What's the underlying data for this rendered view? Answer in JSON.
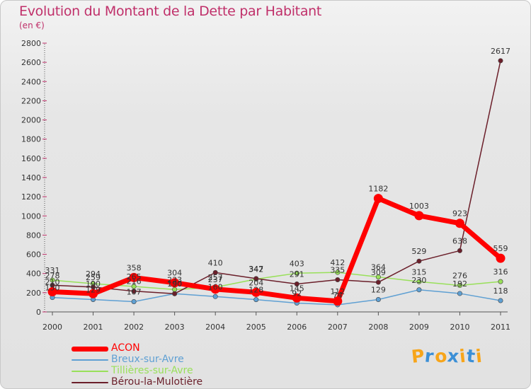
{
  "chart_data": {
    "type": "line",
    "title": "Evolution du Montant de la Dette par Habitant",
    "subtitle": "(en €)",
    "categories": [
      "2000",
      "2001",
      "2002",
      "2003",
      "2004",
      "2005",
      "2006",
      "2007",
      "2008",
      "2009",
      "2010",
      "2011"
    ],
    "ylim": [
      0,
      2800
    ],
    "yticks": [
      0,
      200,
      400,
      600,
      800,
      1000,
      1200,
      1400,
      1600,
      1800,
      2000,
      2200,
      2400,
      2600,
      2800
    ],
    "grid": false,
    "legend_position": "bottom-left",
    "series": [
      {
        "name": "ACON",
        "color": "#ff0000",
        "values": [
          210,
          190,
          358,
          304,
          237,
          204,
          145,
          112,
          1182,
          1003,
          923,
          559
        ]
      },
      {
        "name": "Breux-sur-Avre",
        "color": "#5fa0d3",
        "values": [
          150,
          129,
          107,
          190,
          160,
          128,
          92,
          74,
          129,
          230,
          192,
          118
        ]
      },
      {
        "name": "Tillières-sur-Avre",
        "color": "#99e05a",
        "values": [
          331,
          294,
          265,
          233,
          257,
          342,
          403,
          412,
          364,
          315,
          276,
          316
        ]
      },
      {
        "name": "Bérou-la-Mulotière",
        "color": "#6b1f2a",
        "values": [
          278,
          259,
          216,
          190,
          410,
          347,
          291,
          335,
          309,
          529,
          638,
          2617
        ]
      }
    ]
  },
  "logo": {
    "letters": [
      "P",
      "r",
      "o",
      "x",
      "i",
      "t",
      "i"
    ],
    "colors": [
      "#f7a51a",
      "#3b8fd6",
      "#f7a51a",
      "#3b8fd6",
      "#f7a51a",
      "#3b8fd6",
      "#f7a51a"
    ]
  }
}
